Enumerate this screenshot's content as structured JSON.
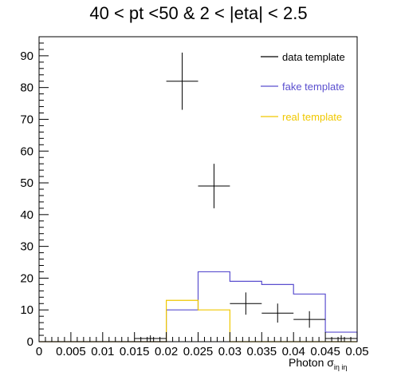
{
  "chart_data": {
    "type": "histogram",
    "title": "40 < pt <50 & 2 < |eta| < 2.5",
    "xlabel": "Photon σ",
    "xlabel_subscript": "iη iη",
    "xlim": [
      0,
      0.05
    ],
    "ylim": [
      0,
      96
    ],
    "x_ticks": [
      0,
      0.005,
      0.01,
      0.015,
      0.02,
      0.025,
      0.03,
      0.035,
      0.04,
      0.045,
      0.05
    ],
    "x_tick_labels": [
      "0",
      "0.005",
      "0.01",
      "0.015",
      "0.02",
      "0.025",
      "0.03",
      "0.035",
      "0.04",
      "0.045",
      "0.05"
    ],
    "y_ticks": [
      0,
      10,
      20,
      30,
      40,
      50,
      60,
      70,
      80,
      90
    ],
    "y_tick_labels": [
      "0",
      "10",
      "20",
      "30",
      "40",
      "50",
      "60",
      "70",
      "80",
      "90"
    ],
    "bin_edges": [
      0,
      0.005,
      0.01,
      0.015,
      0.02,
      0.025,
      0.03,
      0.035,
      0.04,
      0.045,
      0.05
    ],
    "legend_position": "top-right",
    "series": [
      {
        "name": "data template",
        "color": "#000000",
        "style": "points-with-errors",
        "values": [
          0,
          0,
          0,
          1,
          82,
          49,
          12,
          9,
          7,
          1
        ],
        "errors": [
          0,
          0,
          0,
          1,
          9,
          7,
          3.5,
          3,
          2.6,
          1
        ]
      },
      {
        "name": "fake template",
        "color": "#5a4fcf",
        "style": "step",
        "values": [
          0,
          0,
          0,
          0,
          10,
          22,
          19,
          18,
          15,
          3
        ]
      },
      {
        "name": "real template",
        "color": "#f0c800",
        "style": "step",
        "values": [
          0,
          0,
          0,
          0,
          13,
          10,
          0,
          0,
          0,
          0
        ]
      }
    ]
  }
}
